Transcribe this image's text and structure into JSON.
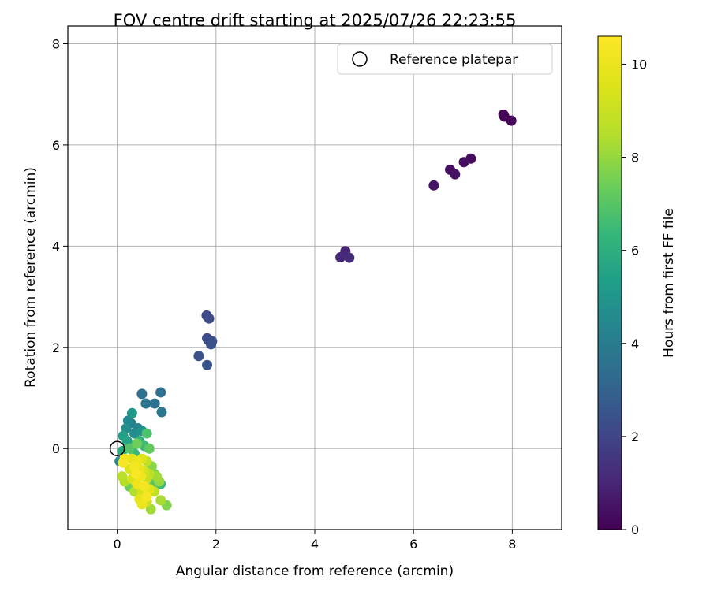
{
  "chart_data": {
    "type": "scatter",
    "title": "FOV centre drift starting at 2025/07/26 22:23:55",
    "xlabel": "Angular distance from reference (arcmin)",
    "ylabel": "Rotation from reference (arcmin)",
    "xlim": [
      -1.0,
      9.0
    ],
    "ylim": [
      -1.6,
      8.35
    ],
    "x_ticks": [
      0,
      2,
      4,
      6,
      8
    ],
    "y_ticks": [
      0,
      2,
      4,
      6,
      8
    ],
    "grid": true,
    "colormap": "viridis",
    "colorbar": {
      "label": "Hours from first FF file",
      "range": [
        0,
        10.6
      ],
      "ticks": [
        0,
        2,
        4,
        6,
        8,
        10
      ]
    },
    "legend": {
      "placement": "top-right",
      "entries": [
        {
          "label": "Reference platepar",
          "marker": "open-circle"
        }
      ]
    },
    "reference_point": {
      "x": 0,
      "y": 0
    },
    "points": [
      {
        "x": 7.82,
        "y": 6.6,
        "h": 0.05
      },
      {
        "x": 7.84,
        "y": 6.56,
        "h": 0.1
      },
      {
        "x": 7.98,
        "y": 6.48,
        "h": 0.15
      },
      {
        "x": 7.16,
        "y": 5.73,
        "h": 0.3
      },
      {
        "x": 7.02,
        "y": 5.66,
        "h": 0.35
      },
      {
        "x": 6.74,
        "y": 5.51,
        "h": 0.4
      },
      {
        "x": 6.84,
        "y": 5.42,
        "h": 0.45
      },
      {
        "x": 6.41,
        "y": 5.2,
        "h": 0.5
      },
      {
        "x": 4.62,
        "y": 3.9,
        "h": 1.0
      },
      {
        "x": 4.52,
        "y": 3.78,
        "h": 1.1
      },
      {
        "x": 4.7,
        "y": 3.77,
        "h": 1.2
      },
      {
        "x": 1.81,
        "y": 2.63,
        "h": 2.1
      },
      {
        "x": 1.86,
        "y": 2.57,
        "h": 2.2
      },
      {
        "x": 1.82,
        "y": 2.18,
        "h": 2.2
      },
      {
        "x": 1.92,
        "y": 2.12,
        "h": 2.3
      },
      {
        "x": 1.85,
        "y": 2.14,
        "h": 2.3
      },
      {
        "x": 1.9,
        "y": 2.06,
        "h": 2.4
      },
      {
        "x": 1.65,
        "y": 1.83,
        "h": 2.4
      },
      {
        "x": 1.82,
        "y": 1.65,
        "h": 2.5
      },
      {
        "x": 0.5,
        "y": 1.08,
        "h": 3.5
      },
      {
        "x": 0.88,
        "y": 1.11,
        "h": 3.5
      },
      {
        "x": 0.58,
        "y": 0.89,
        "h": 3.7
      },
      {
        "x": 0.76,
        "y": 0.89,
        "h": 3.6
      },
      {
        "x": 0.9,
        "y": 0.72,
        "h": 3.8
      },
      {
        "x": 0.3,
        "y": 0.7,
        "h": 5.1
      },
      {
        "x": 0.22,
        "y": 0.55,
        "h": 4.4
      },
      {
        "x": 0.28,
        "y": 0.5,
        "h": 4.3
      },
      {
        "x": 0.18,
        "y": 0.4,
        "h": 4.7
      },
      {
        "x": 0.42,
        "y": 0.4,
        "h": 4.2
      },
      {
        "x": 0.5,
        "y": 0.35,
        "h": 4.9
      },
      {
        "x": 0.12,
        "y": 0.25,
        "h": 5.4
      },
      {
        "x": 0.35,
        "y": 0.3,
        "h": 4.6
      },
      {
        "x": 0.6,
        "y": 0.3,
        "h": 6.8
      },
      {
        "x": 0.2,
        "y": 0.15,
        "h": 5.6
      },
      {
        "x": 0.45,
        "y": 0.15,
        "h": 6.2
      },
      {
        "x": 0.3,
        "y": 0.05,
        "h": 5.0
      },
      {
        "x": 0.1,
        "y": -0.05,
        "h": 5.8
      },
      {
        "x": 0.55,
        "y": 0.05,
        "h": 6.5
      },
      {
        "x": 0.65,
        "y": 0.0,
        "h": 7.2
      },
      {
        "x": 0.35,
        "y": -0.1,
        "h": 6.4
      },
      {
        "x": 0.25,
        "y": 0.0,
        "h": 7.0
      },
      {
        "x": 0.05,
        "y": -0.25,
        "h": 4.5
      },
      {
        "x": 0.4,
        "y": 0.1,
        "h": 7.4
      },
      {
        "x": 0.15,
        "y": -0.2,
        "h": 10.1
      },
      {
        "x": 0.12,
        "y": -0.28,
        "h": 10.4
      },
      {
        "x": 0.3,
        "y": -0.2,
        "h": 9.8
      },
      {
        "x": 0.4,
        "y": -0.25,
        "h": 10.0
      },
      {
        "x": 0.5,
        "y": -0.2,
        "h": 9.6
      },
      {
        "x": 0.6,
        "y": -0.25,
        "h": 8.8
      },
      {
        "x": 0.7,
        "y": -0.35,
        "h": 7.8
      },
      {
        "x": 0.35,
        "y": -0.35,
        "h": 10.3
      },
      {
        "x": 0.45,
        "y": -0.4,
        "h": 9.9
      },
      {
        "x": 0.25,
        "y": -0.4,
        "h": 9.5
      },
      {
        "x": 0.55,
        "y": -0.45,
        "h": 9.2
      },
      {
        "x": 0.65,
        "y": -0.5,
        "h": 8.6
      },
      {
        "x": 0.75,
        "y": -0.5,
        "h": 7.6
      },
      {
        "x": 0.8,
        "y": -0.55,
        "h": 8.2
      },
      {
        "x": 0.38,
        "y": -0.5,
        "h": 10.5
      },
      {
        "x": 0.48,
        "y": -0.55,
        "h": 10.2
      },
      {
        "x": 0.3,
        "y": -0.6,
        "h": 9.4
      },
      {
        "x": 0.6,
        "y": -0.6,
        "h": 9.0
      },
      {
        "x": 0.1,
        "y": -0.55,
        "h": 8.6
      },
      {
        "x": 0.15,
        "y": -0.65,
        "h": 8.4
      },
      {
        "x": 0.85,
        "y": -0.65,
        "h": 8.0
      },
      {
        "x": 0.88,
        "y": -0.7,
        "h": 6.5
      },
      {
        "x": 0.7,
        "y": -0.7,
        "h": 7.0
      },
      {
        "x": 0.4,
        "y": -0.7,
        "h": 10.1
      },
      {
        "x": 0.55,
        "y": -0.75,
        "h": 10.3
      },
      {
        "x": 0.25,
        "y": -0.75,
        "h": 7.4
      },
      {
        "x": 0.65,
        "y": -0.8,
        "h": 9.7
      },
      {
        "x": 0.35,
        "y": -0.85,
        "h": 8.4
      },
      {
        "x": 0.5,
        "y": -0.85,
        "h": 9.3
      },
      {
        "x": 0.75,
        "y": -0.85,
        "h": 8.8
      },
      {
        "x": 0.6,
        "y": -0.95,
        "h": 10.4
      },
      {
        "x": 0.45,
        "y": -1.0,
        "h": 9.8
      },
      {
        "x": 0.6,
        "y": -1.05,
        "h": 9.0
      },
      {
        "x": 0.88,
        "y": -1.02,
        "h": 8.3
      },
      {
        "x": 0.5,
        "y": -1.1,
        "h": 10.0
      },
      {
        "x": 1.0,
        "y": -1.12,
        "h": 7.7
      },
      {
        "x": 0.68,
        "y": -1.2,
        "h": 8.2
      }
    ]
  }
}
